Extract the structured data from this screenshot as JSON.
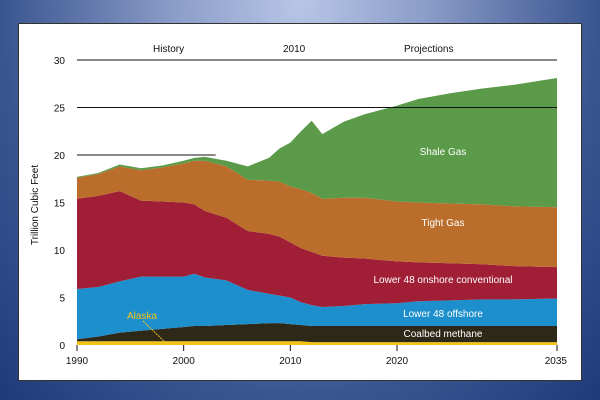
{
  "chart_data": {
    "type": "area",
    "title": "",
    "xlabel": "",
    "ylabel": "Trillion Cubic Feet",
    "ylim": [
      0,
      30
    ],
    "xlim": [
      1990,
      2035
    ],
    "yticks": [
      "0",
      "5",
      "10",
      "15",
      "20",
      "25",
      "30"
    ],
    "xticks": [
      "1990",
      "2000",
      "2010",
      "2020",
      "2035"
    ],
    "xtick_values": [
      1990,
      2000,
      2010,
      2020,
      2035
    ],
    "ytick_values": [
      0,
      5,
      10,
      15,
      20,
      25,
      30
    ],
    "grid": "horizontal lines at 20, 25, 30",
    "annotations": {
      "history": "History",
      "divider": "2010",
      "projections": "Projections"
    },
    "x": [
      1990,
      1992,
      1994,
      1996,
      1998,
      2000,
      2001,
      2002,
      2004,
      2006,
      2008,
      2009,
      2010,
      2011,
      2012,
      2013,
      2015,
      2017,
      2020,
      2022,
      2025,
      2028,
      2031,
      2035
    ],
    "series": [
      {
        "name": "Alaska",
        "color": "#f5c218",
        "values": [
          0.4,
          0.4,
          0.4,
          0.4,
          0.4,
          0.4,
          0.4,
          0.4,
          0.4,
          0.4,
          0.4,
          0.4,
          0.4,
          0.4,
          0.3,
          0.3,
          0.3,
          0.3,
          0.3,
          0.3,
          0.3,
          0.3,
          0.3,
          0.3
        ]
      },
      {
        "name": "Coalbed methane",
        "color": "#2e2818",
        "values": [
          0.2,
          0.5,
          0.9,
          1.1,
          1.3,
          1.5,
          1.6,
          1.6,
          1.7,
          1.8,
          1.9,
          1.9,
          1.8,
          1.7,
          1.7,
          1.7,
          1.7,
          1.7,
          1.7,
          1.7,
          1.7,
          1.7,
          1.7,
          1.7
        ]
      },
      {
        "name": "Lower 48 offshore",
        "color": "#1c8fcc",
        "values": [
          5.3,
          5.2,
          5.4,
          5.7,
          5.5,
          5.3,
          5.5,
          5.1,
          4.7,
          3.6,
          3.1,
          2.9,
          2.8,
          2.4,
          2.2,
          2.0,
          2.1,
          2.3,
          2.4,
          2.6,
          2.7,
          2.8,
          2.8,
          2.9
        ]
      },
      {
        "name": "Lower 48 onshore conventional",
        "color": "#a01e36",
        "values": [
          9.5,
          9.6,
          9.5,
          8.0,
          7.9,
          7.8,
          7.3,
          7.0,
          6.6,
          6.2,
          6.3,
          6.2,
          5.8,
          5.7,
          5.6,
          5.4,
          5.1,
          4.8,
          4.4,
          4.1,
          3.9,
          3.7,
          3.5,
          3.3
        ]
      },
      {
        "name": "Tight Gas",
        "color": "#bb6e2b",
        "values": [
          2.2,
          2.3,
          2.6,
          3.2,
          3.6,
          4.1,
          4.6,
          5.3,
          5.4,
          5.4,
          5.6,
          5.8,
          5.9,
          6.2,
          6.2,
          6.0,
          6.3,
          6.4,
          6.3,
          6.3,
          6.3,
          6.3,
          6.3,
          6.3
        ]
      },
      {
        "name": "Shale Gas",
        "color": "#5a9a48",
        "values": [
          0.1,
          0.1,
          0.2,
          0.2,
          0.2,
          0.3,
          0.3,
          0.4,
          0.6,
          1.4,
          2.4,
          3.5,
          4.6,
          6.1,
          7.6,
          6.8,
          8.0,
          8.8,
          10.1,
          10.9,
          11.6,
          12.2,
          12.8,
          13.6
        ]
      }
    ],
    "area_labels": [
      {
        "series": "Shale Gas",
        "text": "Shale Gas"
      },
      {
        "series": "Tight Gas",
        "text": "Tight Gas"
      },
      {
        "series": "Lower 48 onshore conventional",
        "text": "Lower 48 onshore conventional"
      },
      {
        "series": "Lower 48 offshore",
        "text": "Lower 48 offshore"
      },
      {
        "series": "Coalbed methane",
        "text": "Coalbed methane"
      },
      {
        "series": "Alaska",
        "text": "Alaska"
      }
    ]
  }
}
